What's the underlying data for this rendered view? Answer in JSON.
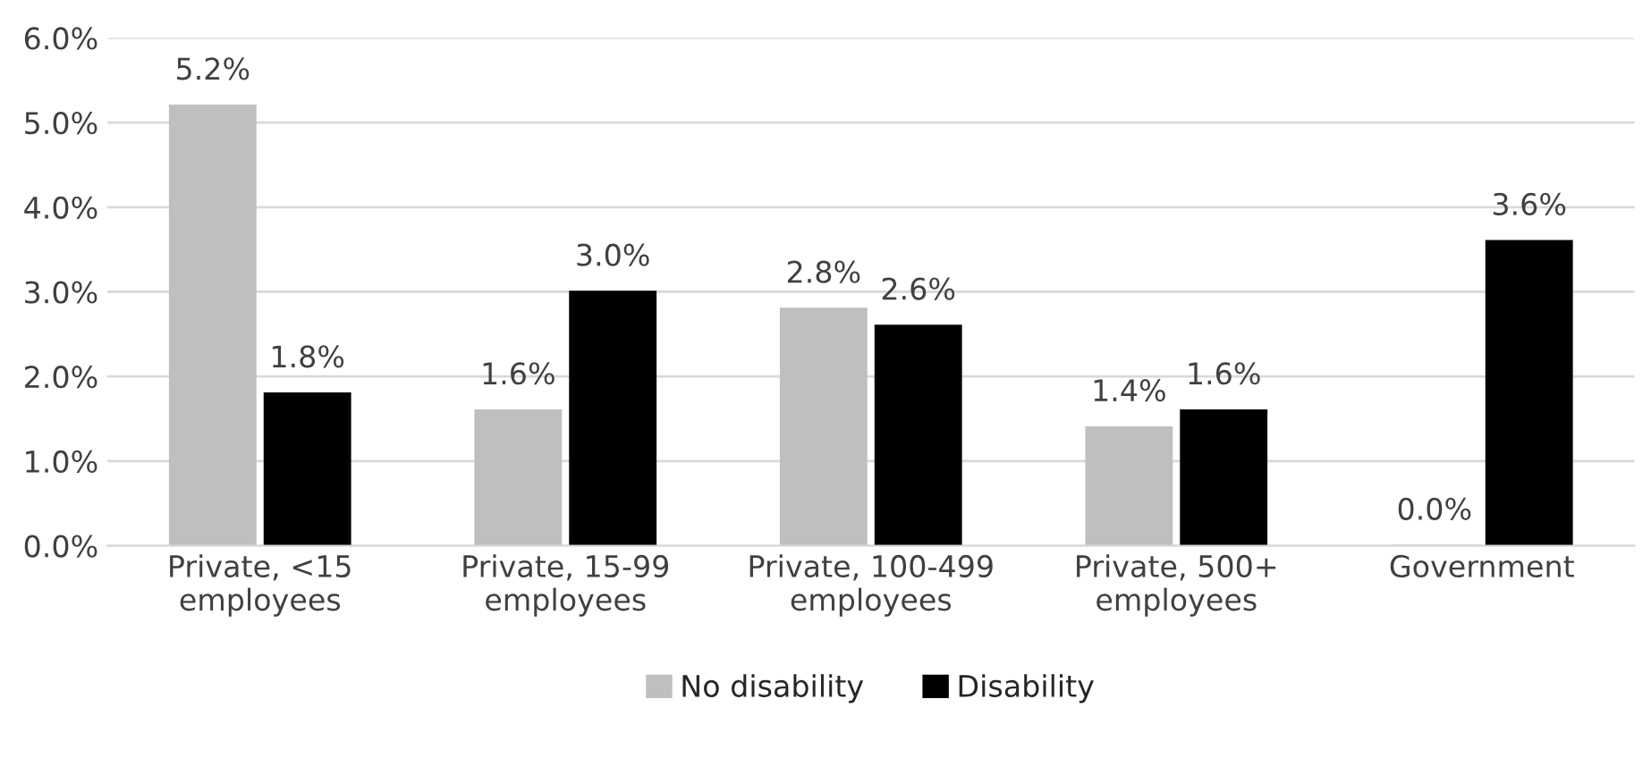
{
  "chart_data": {
    "type": "bar",
    "categories": [
      "Private, <15\nemployees",
      "Private, 15-99\nemployees",
      "Private, 100-499\nemployees",
      "Private, 500+\nemployees",
      "Government"
    ],
    "series": [
      {
        "name": "No disability",
        "color": "#bfbfbf",
        "values": [
          5.2,
          1.6,
          2.8,
          1.4,
          0.0
        ],
        "value_labels": [
          "5.2%",
          "1.6%",
          "2.8%",
          "1.4%",
          "0.0%"
        ]
      },
      {
        "name": "Disability",
        "color": "#000000",
        "values": [
          1.8,
          3.0,
          2.6,
          1.6,
          3.6
        ],
        "value_labels": [
          "1.8%",
          "3.0%",
          "2.6%",
          "1.6%",
          "3.6%"
        ]
      }
    ],
    "ylim": [
      0,
      6
    ],
    "yticks": [
      {
        "value": 0,
        "label": "0.0%"
      },
      {
        "value": 1,
        "label": "1.0%"
      },
      {
        "value": 2,
        "label": "2.0%"
      },
      {
        "value": 3,
        "label": "3.0%"
      },
      {
        "value": 4,
        "label": "4.0%"
      },
      {
        "value": 5,
        "label": "5.0%"
      },
      {
        "value": 6,
        "label": "6.0%"
      }
    ],
    "grid": "y",
    "legend": "bottom"
  }
}
